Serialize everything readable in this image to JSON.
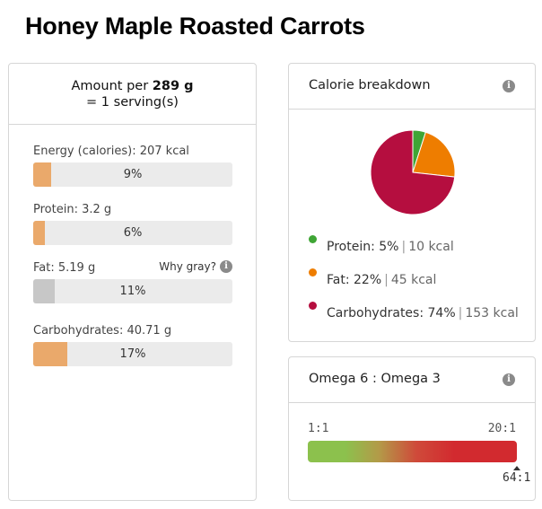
{
  "title": "Honey Maple Roasted Carrots",
  "amount": {
    "prefix": "Amount per ",
    "weight": "289 g",
    "serving": "= 1 serving(s)"
  },
  "nutrients": [
    {
      "label": "Energy (calories): ",
      "value": "207 kcal",
      "percent_text": "9%",
      "percent": 9,
      "color": "#eaa96b"
    },
    {
      "label": "Protein: ",
      "value": "3.2 g",
      "percent_text": "6%",
      "percent": 6,
      "color": "#eaa96b"
    },
    {
      "label": "Fat: ",
      "value": "5.19 g",
      "percent_text": "11%",
      "percent": 11,
      "color": "#c7c7c7",
      "note": "Why gray?"
    },
    {
      "label": "Carbohydrates: ",
      "value": "40.71 g",
      "percent_text": "17%",
      "percent": 17,
      "color": "#eaa96b"
    }
  ],
  "calorie_breakdown": {
    "title": "Calorie breakdown",
    "info_icon": "info-icon",
    "items": [
      {
        "name": "Protein: ",
        "percent": "5%",
        "kcal": "10 kcal",
        "color": "#3fa535"
      },
      {
        "name": "Fat: ",
        "percent": "22%",
        "kcal": "45 kcal",
        "color": "#ee7d00"
      },
      {
        "name": "Carbohydrates: ",
        "percent": "74%",
        "kcal": "153 kcal",
        "color": "#b50e3f"
      }
    ]
  },
  "omega": {
    "title": "Omega 6 : Omega 3",
    "info_icon": "info-icon",
    "scale_min": "1:1",
    "scale_max": "20:1",
    "current": "64:1"
  },
  "chart_data": {
    "type": "pie",
    "categories": [
      "Protein",
      "Fat",
      "Carbohydrates"
    ],
    "values": [
      5,
      22,
      74
    ],
    "colors": [
      "#3fa535",
      "#ee7d00",
      "#b50e3f"
    ],
    "title": "Calorie breakdown",
    "legend": "bottom"
  }
}
